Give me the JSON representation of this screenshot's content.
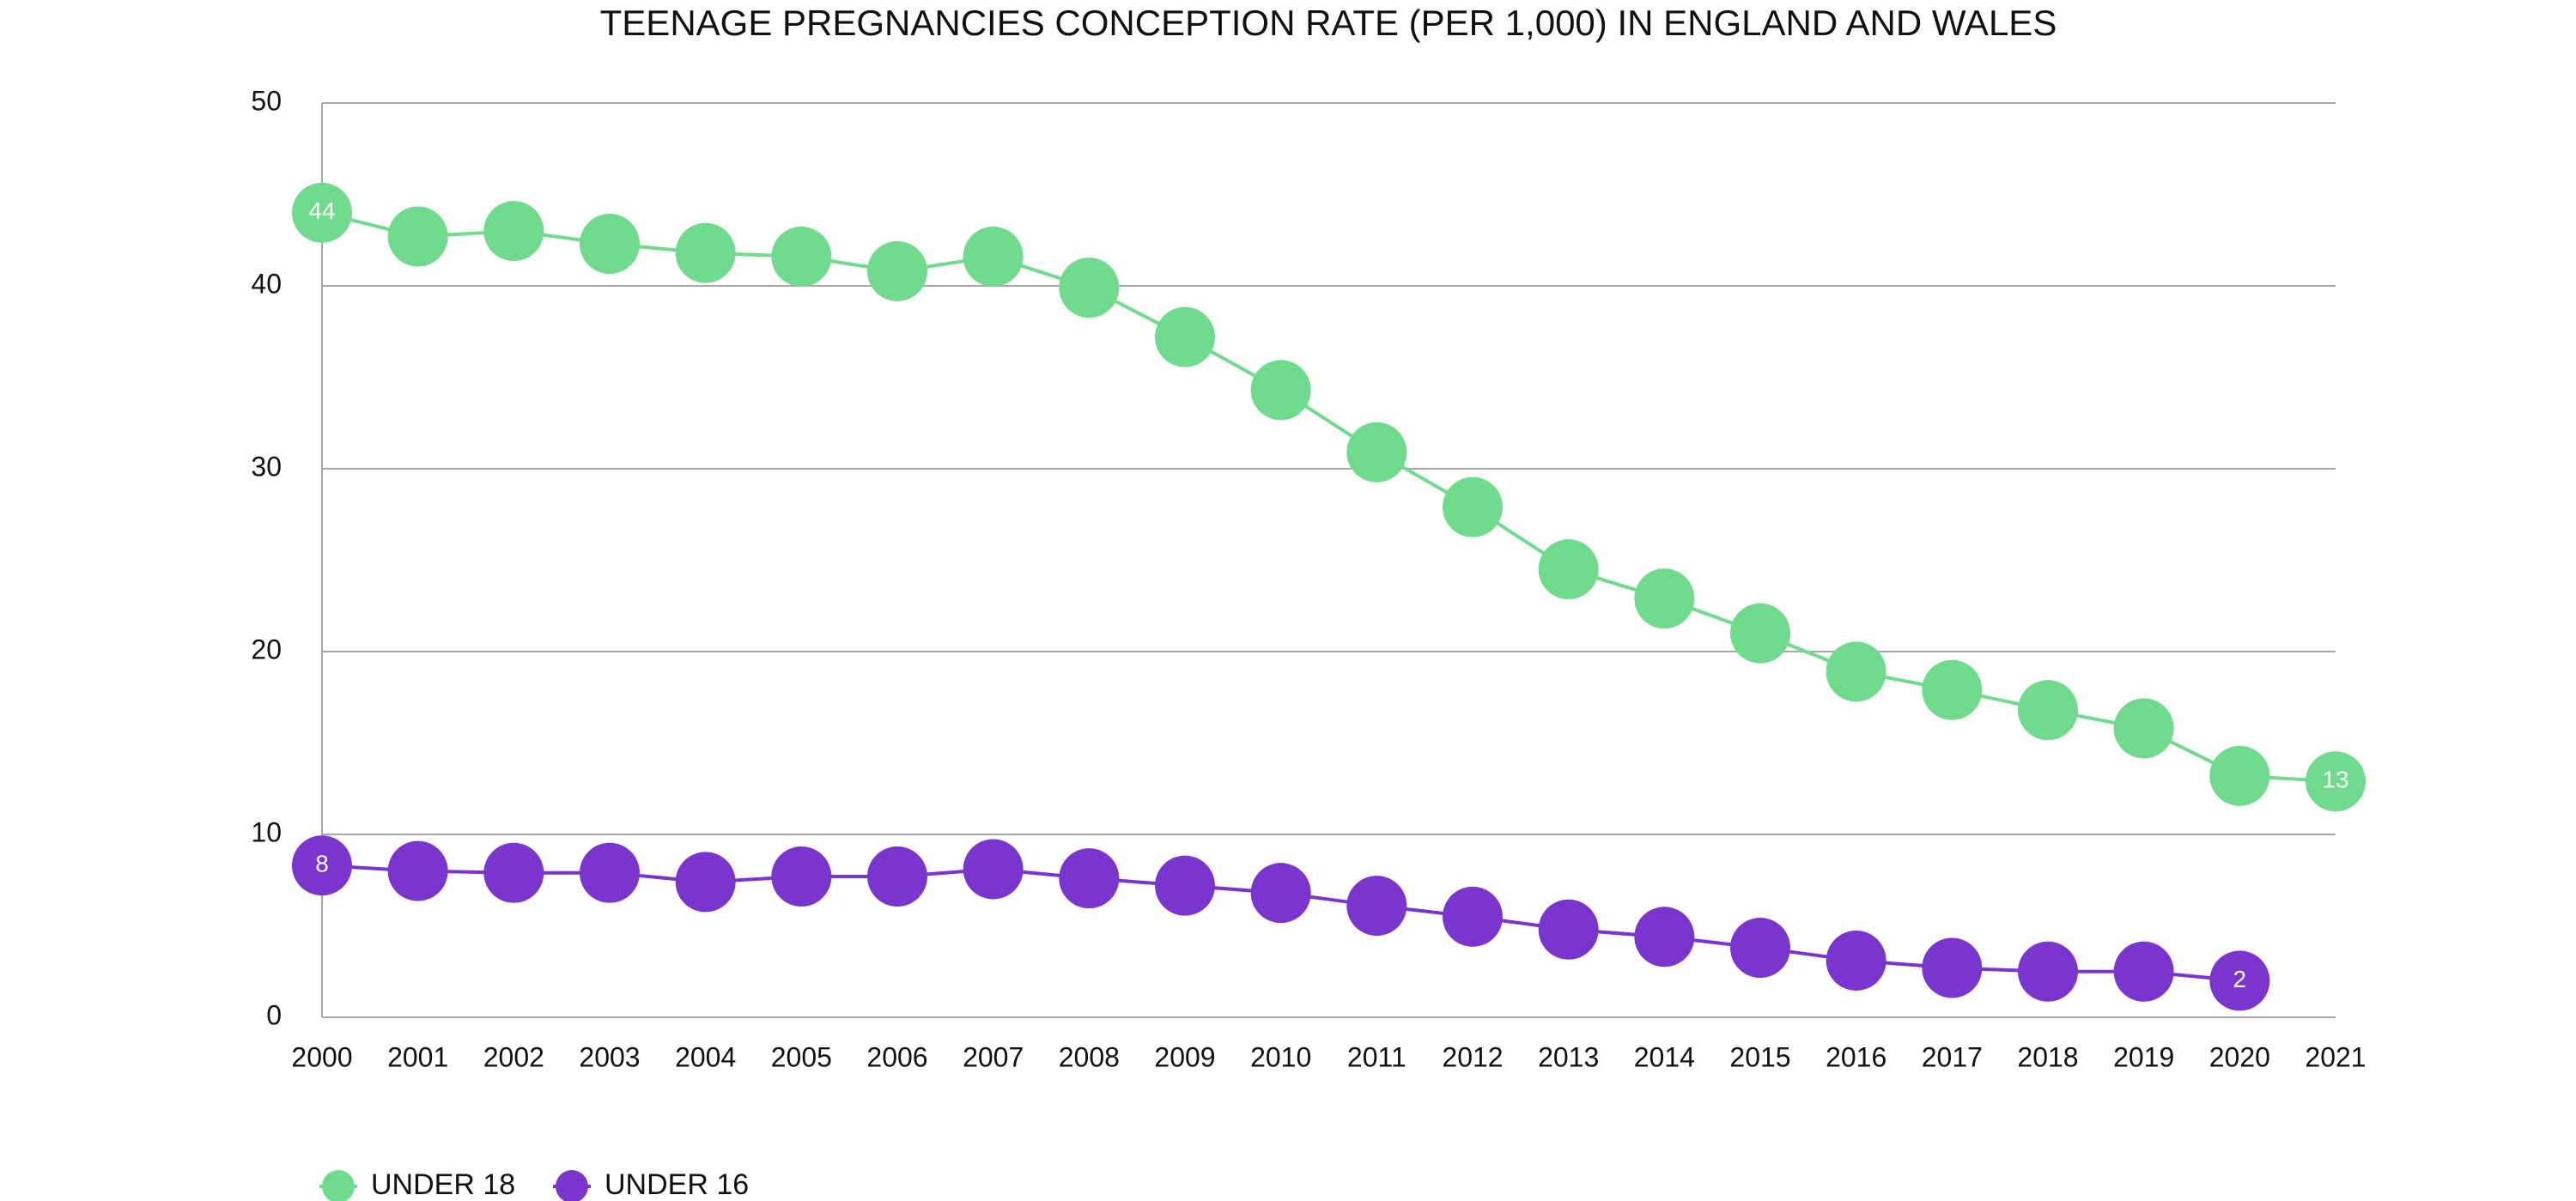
{
  "chart_data": {
    "type": "line",
    "title": "TEENAGE PREGNANCIES CONCEPTION RATE (PER 1,000) IN ENGLAND AND WALES",
    "categories": [
      "2000",
      "2001",
      "2002",
      "2003",
      "2004",
      "2005",
      "2006",
      "2007",
      "2008",
      "2009",
      "2010",
      "2011",
      "2012",
      "2013",
      "2014",
      "2015",
      "2016",
      "2017",
      "2018",
      "2019",
      "2020",
      "2021"
    ],
    "series": [
      {
        "name": "UNDER 18",
        "color": "#70db8c",
        "values": [
          44.0,
          42.7,
          43.0,
          42.3,
          41.8,
          41.6,
          40.8,
          41.6,
          39.9,
          37.2,
          34.3,
          30.9,
          27.9,
          24.5,
          22.9,
          21.0,
          18.9,
          17.9,
          16.8,
          15.8,
          13.2,
          12.9
        ],
        "value_labels": [
          "44",
          null,
          null,
          null,
          null,
          null,
          null,
          null,
          null,
          null,
          null,
          null,
          null,
          null,
          null,
          null,
          null,
          null,
          null,
          null,
          null,
          "13"
        ]
      },
      {
        "name": "UNDER 16",
        "color": "#7b35cf",
        "values": [
          8.3,
          8.0,
          7.9,
          7.9,
          7.4,
          7.7,
          7.7,
          8.1,
          7.6,
          7.2,
          6.8,
          6.1,
          5.5,
          4.8,
          4.4,
          3.8,
          3.1,
          2.7,
          2.5,
          2.5,
          2.0,
          null
        ],
        "value_labels": [
          "8",
          null,
          null,
          null,
          null,
          null,
          null,
          null,
          null,
          null,
          null,
          null,
          null,
          null,
          null,
          null,
          null,
          null,
          null,
          null,
          "2",
          null
        ]
      }
    ],
    "ylim": [
      0,
      50
    ],
    "yticks": [
      0,
      10,
      20,
      30,
      40,
      50
    ],
    "grid": true,
    "legend": "bottom-left"
  }
}
